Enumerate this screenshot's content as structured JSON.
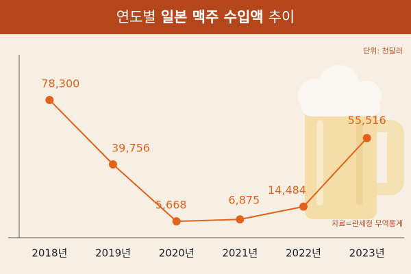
{
  "chart_data": {
    "type": "line",
    "title_parts": [
      "연도별",
      "일본 맥주 수입액",
      "추이"
    ],
    "unit": "단위: 천달러",
    "source": "자료=관세청 무역통계",
    "categories": [
      "2018년",
      "2019년",
      "2020년",
      "2021년",
      "2022년",
      "2023년"
    ],
    "values": [
      78300,
      39756,
      5668,
      6875,
      14484,
      55516
    ],
    "value_labels": [
      "78,300",
      "39,756",
      "5,668",
      "6,875",
      "14,484",
      "55,516"
    ],
    "color": "#e2621b",
    "ylim": [
      0,
      100000
    ]
  }
}
